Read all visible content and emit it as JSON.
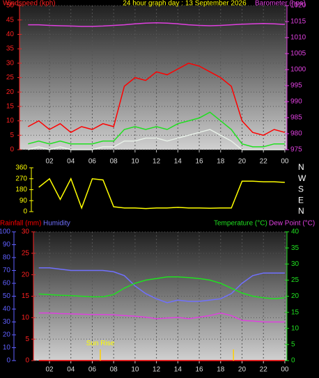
{
  "chart_data": [
    {
      "type": "line",
      "title": "24 hour graph day : 13 September 2026",
      "ylabel": "Windspeed (kph)",
      "y2label": "Barometer (hpa)",
      "x": [
        0,
        1,
        2,
        3,
        4,
        5,
        6,
        7,
        8,
        9,
        10,
        11,
        12,
        13,
        14,
        15,
        16,
        17,
        18,
        19,
        20,
        21,
        22,
        23,
        24
      ],
      "xlim": [
        -0.8,
        24.2
      ],
      "xticks": [
        {
          "value": 2,
          "label": "02"
        },
        {
          "value": 4,
          "label": "04"
        },
        {
          "value": 6,
          "label": "06"
        },
        {
          "value": 8,
          "label": "08"
        },
        10,
        12,
        14,
        16,
        18,
        20,
        22,
        {
          "value": 24,
          "label": "00"
        }
      ],
      "ylim": [
        0,
        50
      ],
      "yticks": [
        0,
        5,
        10,
        15,
        20,
        25,
        30,
        35,
        40,
        45,
        50
      ],
      "ycolor": "#ff2020",
      "y2lim": [
        975,
        1020
      ],
      "y2ticks": [
        975,
        980,
        985,
        990,
        995,
        1000,
        1005,
        1010,
        1015,
        1020
      ],
      "y2color": "#e040e0",
      "grid": true,
      "series": [
        {
          "color": "#ff0000",
          "values": [
            8,
            10,
            7,
            9,
            6,
            8,
            7,
            9,
            8,
            22,
            25,
            24,
            27,
            26,
            28,
            30,
            29,
            27,
            25,
            22,
            10,
            6,
            5,
            7,
            6
          ]
        },
        {
          "color": "#20e020",
          "values": [
            2,
            3,
            2,
            3,
            2,
            2,
            2,
            3,
            3,
            7,
            8,
            7,
            8,
            7,
            9,
            10,
            11,
            13,
            10,
            7,
            2,
            1,
            1,
            2,
            2
          ]
        },
        {
          "color": "#e8f0e8",
          "values": [
            0,
            1,
            0,
            1,
            0,
            0,
            0,
            1,
            1,
            3,
            3,
            4,
            4,
            3,
            4,
            5,
            6,
            7,
            5,
            3,
            0,
            0,
            0,
            0,
            0
          ]
        },
        {
          "color": "#e040e0",
          "axis": "y2",
          "values": [
            1014,
            1014,
            1013.8,
            1013.7,
            1013.6,
            1013.5,
            1013.5,
            1013.6,
            1013.8,
            1014,
            1014.3,
            1014.5,
            1014.6,
            1014.5,
            1014.3,
            1014,
            1013.8,
            1013.7,
            1013.8,
            1014,
            1014.2,
            1014.3,
            1014.4,
            1014.3,
            1014.1
          ]
        }
      ]
    },
    {
      "type": "line",
      "x": [
        1,
        2,
        3,
        4,
        5,
        6,
        7,
        8,
        9,
        10,
        11,
        12,
        13,
        14,
        15,
        16,
        17,
        18,
        19,
        20,
        21,
        22,
        23,
        24
      ],
      "xlim": [
        0.3,
        24.2
      ],
      "ylim": [
        0,
        360
      ],
      "yticks": [
        0,
        90,
        180,
        270,
        360
      ],
      "ycolor": "#ffff00",
      "y2lim": [
        0,
        360
      ],
      "y2ticks": [
        {
          "value": 360,
          "label": "N"
        },
        {
          "value": 270,
          "label": "W"
        },
        {
          "value": 180,
          "label": "S"
        },
        {
          "value": 90,
          "label": "E"
        },
        {
          "value": 0,
          "label": "N"
        }
      ],
      "y2color": "#ffffff",
      "grid": false,
      "series": [
        {
          "color": "#ffff00",
          "values": [
            200,
            270,
            100,
            270,
            30,
            270,
            260,
            40,
            30,
            30,
            25,
            30,
            30,
            35,
            30,
            30,
            28,
            30,
            30,
            250,
            250,
            245,
            245,
            240
          ]
        }
      ]
    },
    {
      "type": "line",
      "x": [
        1,
        2,
        3,
        4,
        5,
        6,
        7,
        8,
        9,
        10,
        11,
        12,
        13,
        14,
        15,
        16,
        17,
        18,
        19,
        20,
        21,
        22,
        23,
        24
      ],
      "xlim": [
        0.5,
        24.2
      ],
      "xticks": [
        {
          "value": 2,
          "label": "02"
        },
        {
          "value": 4,
          "label": "04"
        },
        {
          "value": 6,
          "label": "06"
        },
        {
          "value": 8,
          "label": "08"
        },
        10,
        12,
        14,
        16,
        18,
        20,
        22,
        {
          "value": 24,
          "label": "00"
        }
      ],
      "ylim": [
        0,
        30
      ],
      "yticks": [
        0,
        5,
        10,
        15,
        20,
        25,
        30
      ],
      "ycolor": "#ff2020",
      "y3lim": [
        0,
        100
      ],
      "y3ticks": [
        0,
        10,
        20,
        30,
        40,
        50,
        60,
        70,
        80,
        90,
        100
      ],
      "y3color": "#6060ff",
      "y2lim": [
        0,
        40
      ],
      "y2ticks": [
        0,
        5,
        10,
        15,
        20,
        25,
        30,
        35,
        40
      ],
      "y2color": "#20e020",
      "grid": true,
      "annotations": [
        {
          "text": "Sun Rise",
          "x": 6.75,
          "y": 4
        }
      ],
      "sun_ticks": [
        6.75,
        19.2
      ],
      "series": [
        {
          "name": "Rainfall (mm)",
          "color": "#ff0000",
          "values": [
            0,
            0,
            0,
            0,
            0,
            0,
            0,
            0,
            0,
            0,
            0,
            0,
            0,
            0,
            0,
            0,
            0,
            0,
            0,
            0,
            0,
            0,
            0,
            0
          ]
        },
        {
          "name": "Humidity",
          "color": "#7070ff",
          "axis": "y3",
          "values": [
            72,
            72,
            71,
            70,
            70,
            70,
            70,
            69,
            66,
            58,
            52,
            48,
            45,
            47,
            46,
            46,
            47,
            48,
            52,
            60,
            66,
            68,
            68,
            68
          ]
        },
        {
          "name": "Temperature (°C)",
          "color": "#20e020",
          "axis": "y2",
          "values": [
            20.7,
            20.5,
            20.3,
            20.2,
            20,
            19.8,
            19.8,
            20.5,
            22.5,
            24,
            25,
            25.5,
            26,
            26,
            25.8,
            25.5,
            25,
            24,
            22.5,
            21,
            20,
            19.5,
            19.2,
            19.5
          ]
        },
        {
          "name": "Dew Point (°C)",
          "color": "#e040e0",
          "axis": "y2",
          "values": [
            14.8,
            14.8,
            14.6,
            14.5,
            14.4,
            14.3,
            14.3,
            14.2,
            14,
            13.8,
            13.5,
            13,
            13.2,
            13.4,
            13,
            13.5,
            14,
            14.8,
            14,
            12.5,
            12.3,
            12,
            12,
            12
          ]
        }
      ]
    }
  ]
}
